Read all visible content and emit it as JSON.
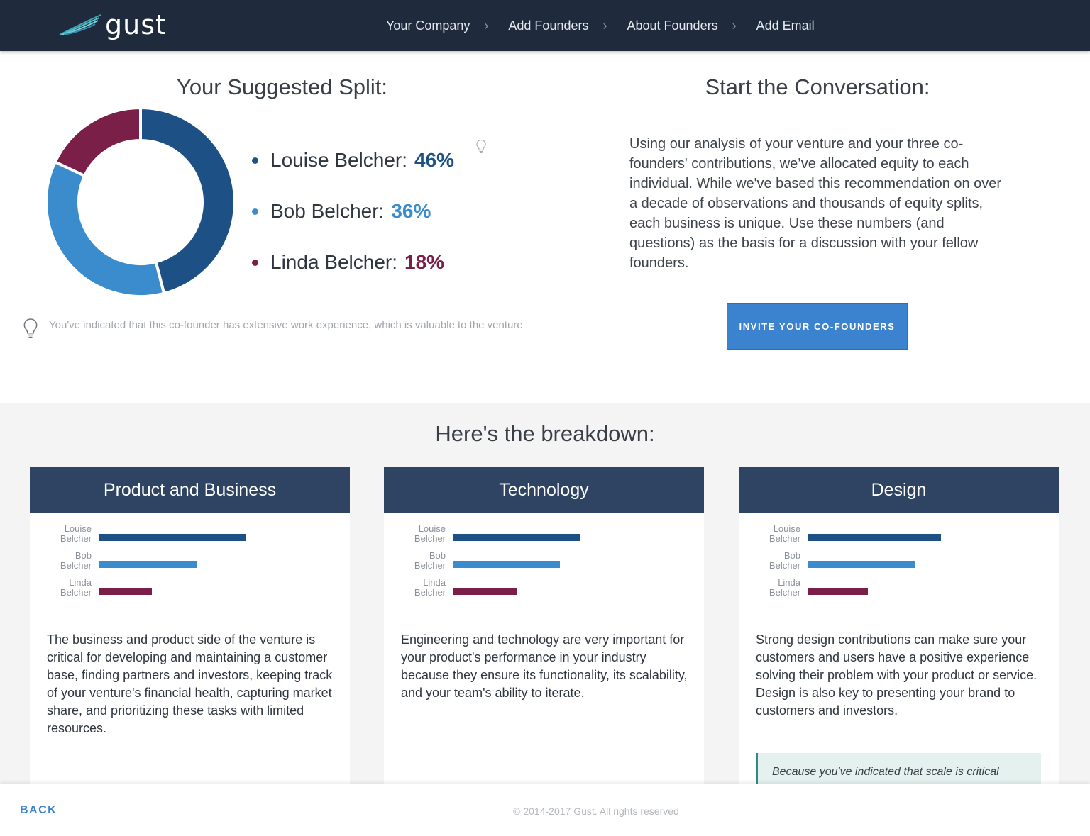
{
  "header": {
    "logo_text": "gust",
    "steps": [
      {
        "label": "Your Company"
      },
      {
        "label": "Add Founders"
      },
      {
        "label": "About Founders"
      },
      {
        "label": "Add Email"
      }
    ],
    "chevron": "›"
  },
  "split": {
    "title": "Your Suggested Split:",
    "founders": [
      {
        "name": "Louise Belcher:",
        "percent": "46%",
        "value": 46,
        "color": "#1d5186"
      },
      {
        "name": "Bob Belcher:",
        "percent": "36%",
        "value": 36,
        "color": "#3a8ccc"
      },
      {
        "name": "Linda Belcher:",
        "percent": "18%",
        "value": 18,
        "color": "#7a1f48"
      }
    ],
    "tip_text": "You've indicated that this co-founder has extensive work experience, which is valuable to the venture",
    "icons": {
      "tip": "lightbulb-icon"
    }
  },
  "conversation": {
    "title": "Start the Conversation:",
    "body": "Using our analysis of your venture and your three co-founders' contributions, we’ve allocated equity to each individual. While we've based this recommendation on over a decade of observations and thousands of equity splits, each business is unique. Use these numbers (and questions) as the basis for a discussion with your fellow founders.",
    "button_label": "INVITE YOUR CO-FOUNDERS"
  },
  "breakdown": {
    "title": "Here's the breakdown:",
    "label_founders": [
      {
        "first": "Louise",
        "last": "Belcher"
      },
      {
        "first": "Bob",
        "last": "Belcher"
      },
      {
        "first": "Linda",
        "last": "Belcher"
      }
    ],
    "cards": [
      {
        "title": "Product and Business",
        "text": "The business and product side of the venture is critical for developing and maintaining a customer base, finding partners and investors, keeping track of your venture's financial health, capturing market share, and prioritizing these tasks with limited resources.",
        "bar_values": [
          0.66,
          0.44,
          0.24
        ]
      },
      {
        "title": "Technology",
        "text": "Engineering and technology are very important for your product's performance in your industry because they ensure its functionality, its scalability, and your team's ability to iterate.",
        "bar_values": [
          0.57,
          0.48,
          0.29
        ]
      },
      {
        "title": "Design",
        "text": "Strong design contributions can make sure your customers and users have a positive experience solving their problem with your product or service. Design is also key to presenting your brand to customers and investors.",
        "bar_values": [
          0.6,
          0.48,
          0.27
        ],
        "note": "Because you've indicated that scale is critical"
      }
    ]
  },
  "footer": {
    "back_label": "BACK",
    "copyright": "© 2014-2017 Gust. All rights reserved"
  }
}
